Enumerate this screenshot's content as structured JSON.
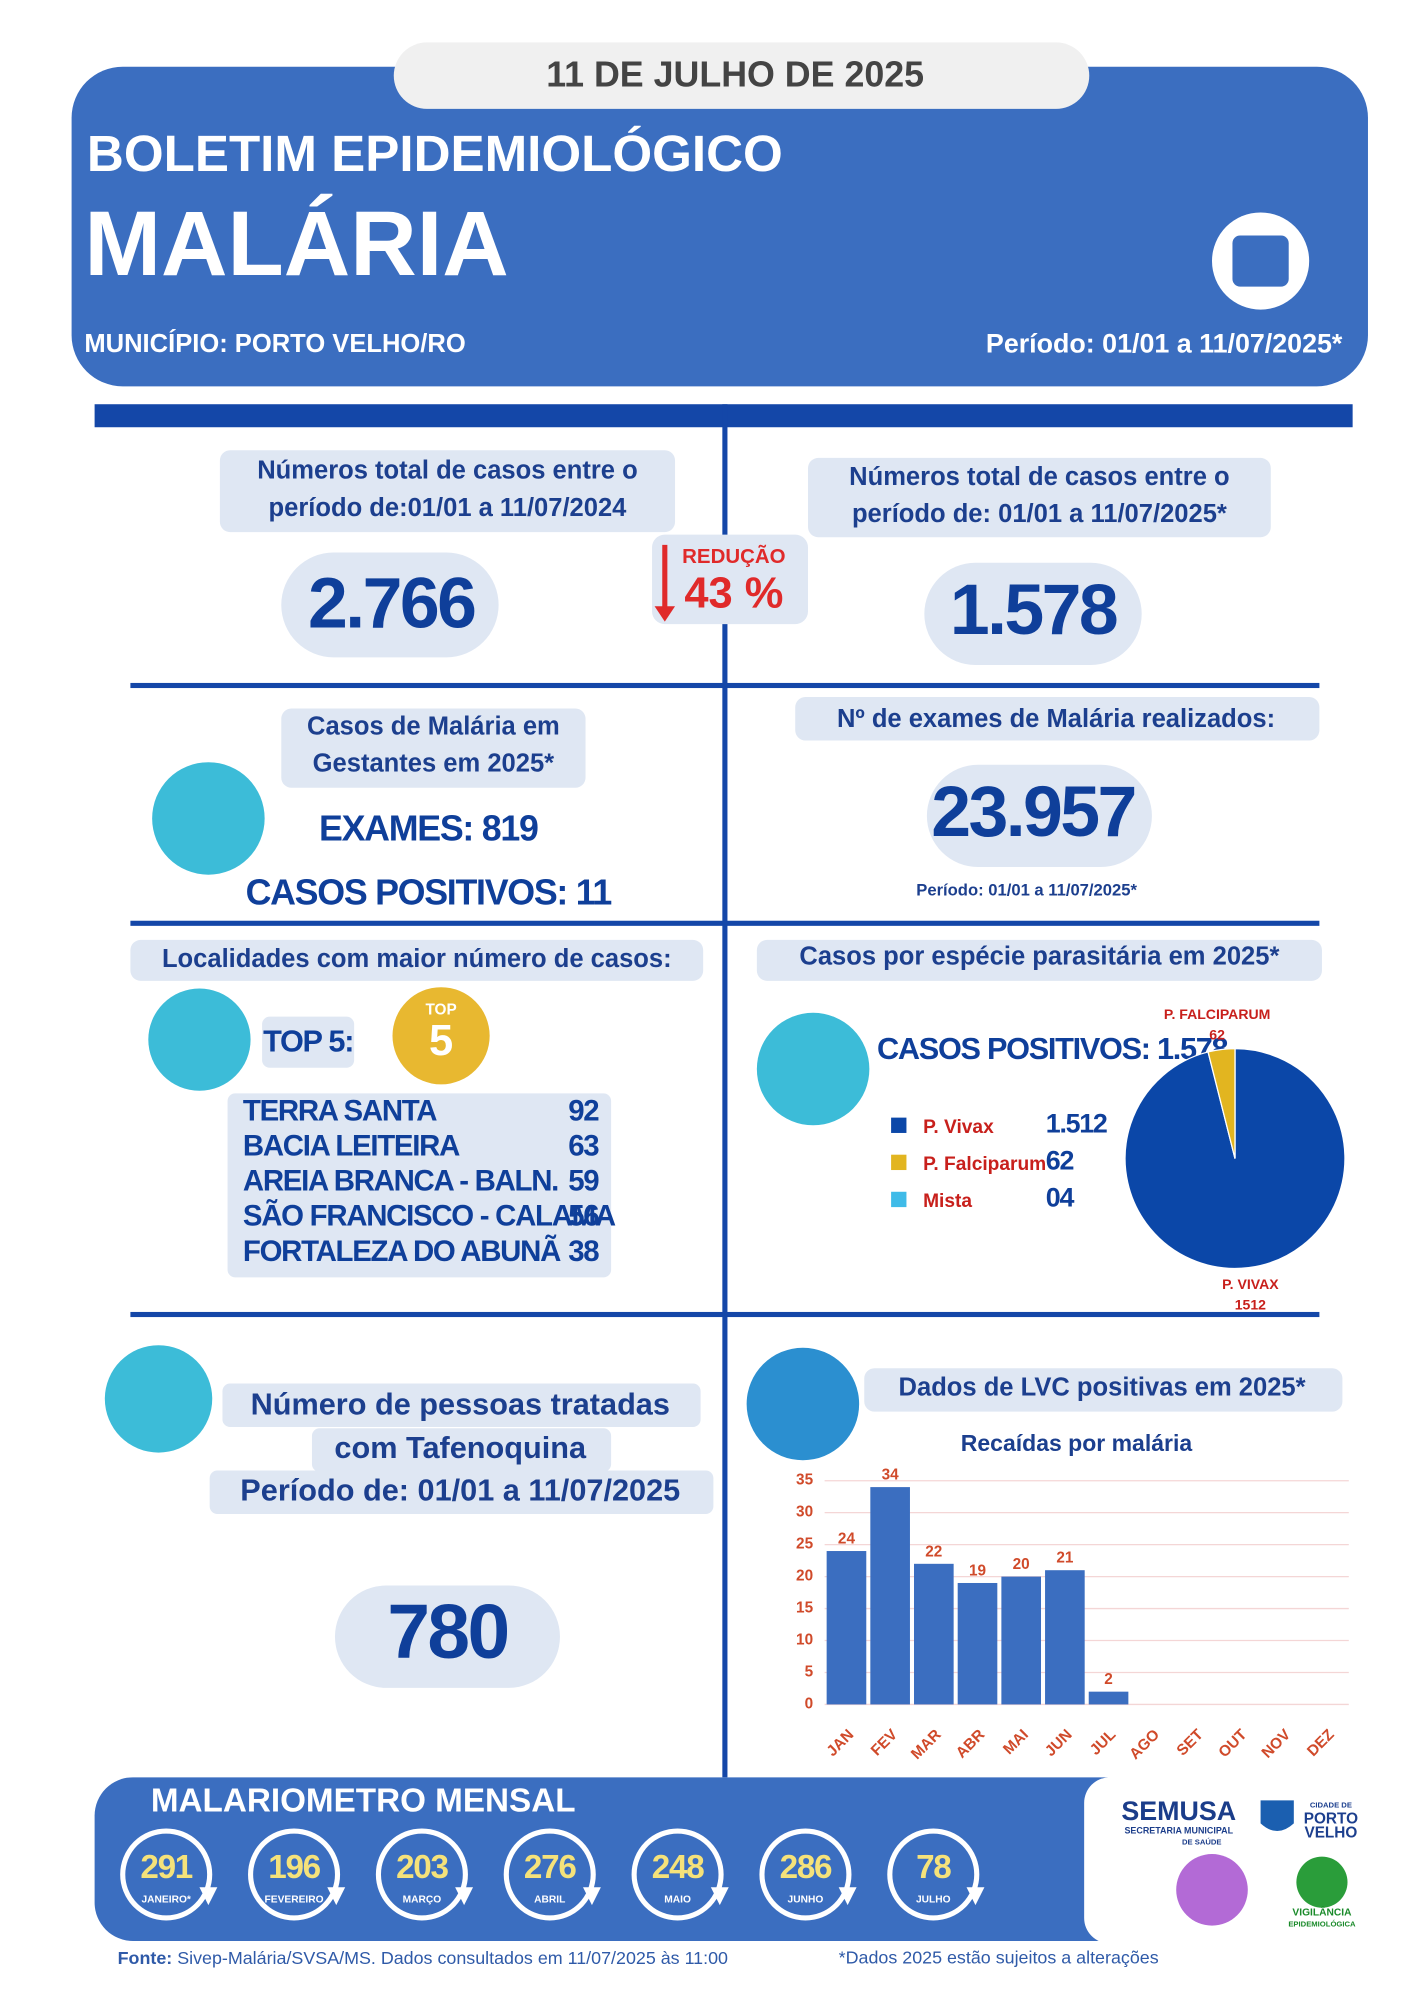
{
  "header": {
    "date": "11 DE JULHO DE 2025",
    "title": "BOLETIM EPIDEMIOLÓGICO",
    "subtitle": "MALÁRIA",
    "municipality": "MUNICÍPIO: PORTO VELHO/RO",
    "period": "Período: 01/01 a 11/07/2025*"
  },
  "totals": {
    "left": {
      "label_lines": [
        "Números total de casos entre o",
        "período de:01/01 a 11/07/2024"
      ],
      "value": "2.766"
    },
    "reduction": {
      "label": "REDUÇÃO",
      "value": "43 %"
    },
    "right": {
      "label_lines": [
        "Números total de casos entre o",
        "período de: 01/01 a 11/07/2025*"
      ],
      "value": "1.578"
    }
  },
  "pregnant": {
    "label_lines": [
      "Casos de Malária em",
      "Gestantes em 2025*"
    ],
    "exams": "EXAMES: 819",
    "positives": "CASOS POSITIVOS: 11"
  },
  "exams": {
    "label": "Nº de exames de Malária realizados:",
    "value": "23.957",
    "period": "Período: 01/01 a 11/07/2025*"
  },
  "localities": {
    "label": "Localidades com maior número de casos:",
    "top_label": "TOP 5:",
    "badge": [
      "TOP",
      "5"
    ],
    "rows": [
      [
        "TERRA SANTA",
        "92"
      ],
      [
        "BACIA LEITEIRA",
        "63"
      ],
      [
        "AREIA BRANCA - BALN.",
        "59"
      ],
      [
        "SÃO FRANCISCO - CALAMA",
        "56"
      ],
      [
        "FORTALEZA DO ABUNÃ",
        "38"
      ]
    ]
  },
  "species": {
    "label": "Casos por espécie parasitária em 2025*",
    "positives": "CASOS POSITIVOS: 1.578",
    "legend": [
      [
        "P. Vivax",
        "1.512"
      ],
      [
        "P. Falciparum",
        "62"
      ],
      [
        "Mista",
        "04"
      ]
    ]
  },
  "treatment": {
    "label_lines": [
      "Número de pessoas tratadas",
      "com Tafenoquina",
      "Período de: 01/01 a 11/07/2025"
    ],
    "value": "780"
  },
  "lvc": {
    "label": "Dados de LVC positivas em 2025*"
  },
  "chart_data": [
    {
      "type": "pie",
      "categories": [
        "P. VIVAX",
        "P. FALCIPARUM"
      ],
      "values": [
        1512,
        62
      ],
      "colors": [
        "#0b47a8",
        "#e2b520"
      ]
    },
    {
      "type": "bar",
      "title": "Recaídas por malária",
      "categories": [
        "JAN",
        "FEV",
        "MAR",
        "ABR",
        "MAI",
        "JUN",
        "JUL",
        "AGO",
        "SET",
        "OUT",
        "NOV",
        "DEZ"
      ],
      "values": [
        24,
        34,
        22,
        19,
        20,
        21,
        2,
        null,
        null,
        null,
        null,
        null
      ],
      "color": "#3b6ec0",
      "ylim": [
        0,
        35
      ],
      "yticks": [
        0,
        5,
        10,
        15,
        20,
        25,
        30,
        35
      ],
      "grid": true
    }
  ],
  "malariometer": {
    "title": "MALARIOMETRO MENSAL",
    "months": [
      [
        "291",
        "JANEIRO*"
      ],
      [
        "196",
        "FEVEREIRO"
      ],
      [
        "203",
        "MARÇO"
      ],
      [
        "276",
        "ABRIL"
      ],
      [
        "248",
        "MAIO"
      ],
      [
        "286",
        "JUNHO"
      ],
      [
        "78",
        "JULHO"
      ]
    ]
  },
  "logos": {
    "semusa": "SEMUSA",
    "semusa_sub": [
      "SECRETARIA MUNICIPAL",
      "DE SAÚDE"
    ],
    "city": [
      "CIDADE DE",
      "PORTO",
      "VELHO"
    ],
    "vigilancia": [
      "VIGILÂNCIA",
      "EPIDEMIOLÓGICA"
    ]
  },
  "footer": {
    "source_label": "Fonte:",
    "source": "Sivep-Malária/SVSA/MS. Dados consultados em 11/07/2025 às 11:00",
    "note": "*Dados 2025 estão sujeitos a alterações"
  }
}
